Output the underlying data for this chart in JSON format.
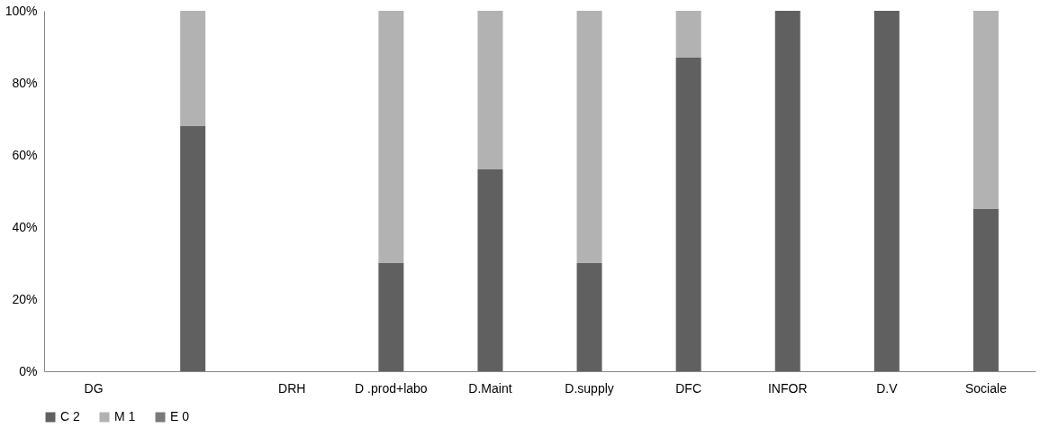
{
  "chart_data": {
    "type": "bar",
    "stacked": true,
    "categories": [
      "DG",
      null,
      "DRH",
      "D .prod+labo",
      "D.Maint",
      "D.supply",
      "DFC",
      "INFOR",
      "D.V",
      "Sociale"
    ],
    "series": [
      {
        "name": "C 2",
        "color": "#606060",
        "values": [
          null,
          68,
          null,
          30,
          56,
          30,
          87,
          100,
          100,
          45
        ]
      },
      {
        "name": "M 1",
        "color": "#b2b2b2",
        "values": [
          null,
          32,
          null,
          70,
          44,
          70,
          13,
          0,
          0,
          55
        ]
      },
      {
        "name": "E 0",
        "color": "#7a7a7a",
        "values": [
          null,
          0,
          null,
          0,
          0,
          0,
          0,
          0,
          0,
          0
        ]
      }
    ],
    "ylim": [
      0,
      100
    ],
    "yticks": [
      {
        "value": 0,
        "label": "0%"
      },
      {
        "value": 20,
        "label": "20%"
      },
      {
        "value": 40,
        "label": "40%"
      },
      {
        "value": 60,
        "label": "60%"
      },
      {
        "value": 80,
        "label": "80%"
      },
      {
        "value": 100,
        "label": "100%"
      }
    ],
    "grid": false,
    "legend": "bottom"
  }
}
